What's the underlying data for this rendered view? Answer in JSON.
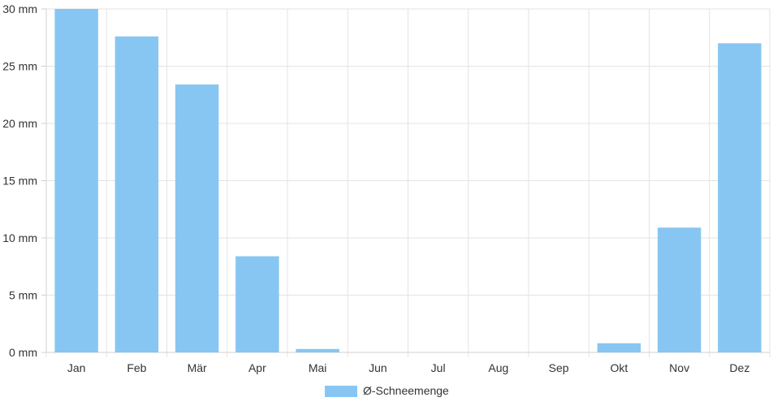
{
  "chart_data": {
    "type": "bar",
    "categories": [
      "Jan",
      "Feb",
      "Mär",
      "Apr",
      "Mai",
      "Jun",
      "Jul",
      "Aug",
      "Sep",
      "Okt",
      "Nov",
      "Dez"
    ],
    "series": [
      {
        "name": "Ø-Schneemenge",
        "values": [
          30.0,
          27.6,
          23.4,
          8.4,
          0.3,
          0,
          0,
          0,
          0,
          0.8,
          10.9,
          27.0
        ],
        "color": "#87c6f2"
      }
    ],
    "yticks": [
      "0 mm",
      "5 mm",
      "10 mm",
      "15 mm",
      "20 mm",
      "25 mm",
      "30 mm"
    ],
    "ylim": [
      0,
      30
    ],
    "ytick_step": 5,
    "unit": "mm",
    "grid": true,
    "legend_position": "bottom"
  }
}
